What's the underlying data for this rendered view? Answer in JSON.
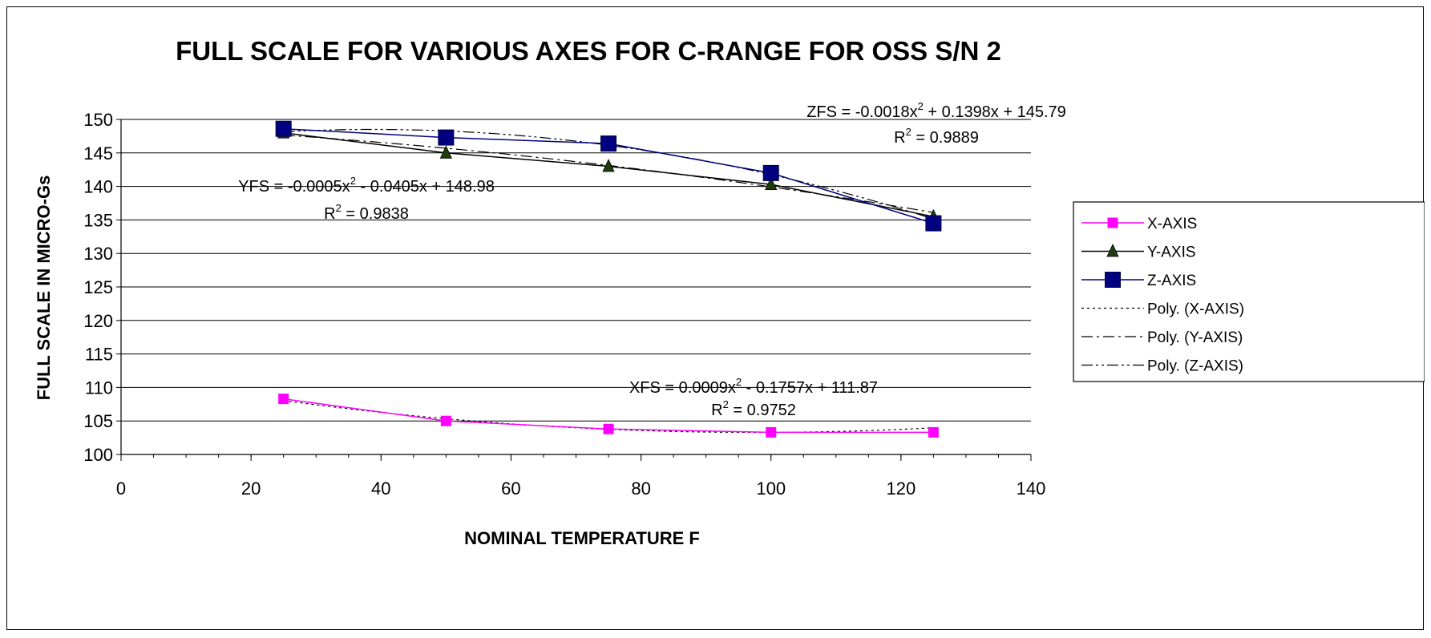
{
  "chart_data": {
    "type": "line",
    "title": "FULL SCALE FOR VARIOUS AXES FOR C-RANGE FOR OSS S/N 2",
    "xlabel": "NOMINAL TEMPERATURE F",
    "ylabel": "FULL SCALE IN MICRO-Gs",
    "xlim": [
      0,
      140
    ],
    "ylim": [
      100,
      150
    ],
    "x_ticks": [
      "0",
      "20",
      "40",
      "60",
      "80",
      "100",
      "120",
      "140"
    ],
    "y_ticks": [
      "100",
      "105",
      "110",
      "115",
      "120",
      "125",
      "130",
      "135",
      "140",
      "145",
      "150"
    ],
    "grid": "horizontal",
    "legend_position": "right",
    "series": [
      {
        "name": "X-AXIS",
        "color": "#ff00ff",
        "marker": "square",
        "x": [
          25,
          50,
          75,
          100,
          125
        ],
        "values": [
          108.3,
          105.0,
          103.8,
          103.3,
          103.3
        ]
      },
      {
        "name": "Y-AXIS",
        "color": "#000000",
        "marker": "triangle",
        "marker_color": "#1f3d0c",
        "x": [
          25,
          50,
          75,
          100,
          125
        ],
        "values": [
          148.0,
          145.0,
          143.0,
          140.3,
          135.5
        ]
      },
      {
        "name": "Z-AXIS",
        "color": "#000080",
        "marker": "square",
        "marker_color": "#000080",
        "x": [
          25,
          50,
          75,
          100,
          125
        ],
        "values": [
          148.6,
          147.3,
          146.4,
          142.0,
          134.5
        ]
      }
    ],
    "trendlines": [
      {
        "name": "Poly. (X-AXIS)",
        "of": "X-AXIS",
        "dash": "dotted",
        "coefficients": [
          0.0009,
          -0.1757,
          111.87
        ]
      },
      {
        "name": "Poly. (Y-AXIS)",
        "of": "Y-AXIS",
        "dash": "dash-dot",
        "coefficients": [
          -0.0005,
          -0.0405,
          148.98
        ]
      },
      {
        "name": "Poly. (Z-AXIS)",
        "of": "Z-AXIS",
        "dash": "dash-dot-dot",
        "coefficients": [
          -0.0018,
          0.1398,
          145.79
        ]
      }
    ],
    "annotations": [
      {
        "id": "zfs",
        "eq_pre": "ZFS = -0.0018x",
        "eq_post": " + 0.1398x + 145.79",
        "r2_pre": "R",
        "r2_post": " = 0.9889"
      },
      {
        "id": "yfs",
        "eq_pre": "YFS = -0.0005x",
        "eq_post": " - 0.0405x + 148.98",
        "r2_pre": "R",
        "r2_post": " = 0.9838"
      },
      {
        "id": "xfs",
        "eq_pre": "XFS = 0.0009x",
        "eq_post": " - 0.1757x + 111.87",
        "r2_pre": "R",
        "r2_post": " = 0.9752"
      }
    ],
    "superscript": "2"
  }
}
